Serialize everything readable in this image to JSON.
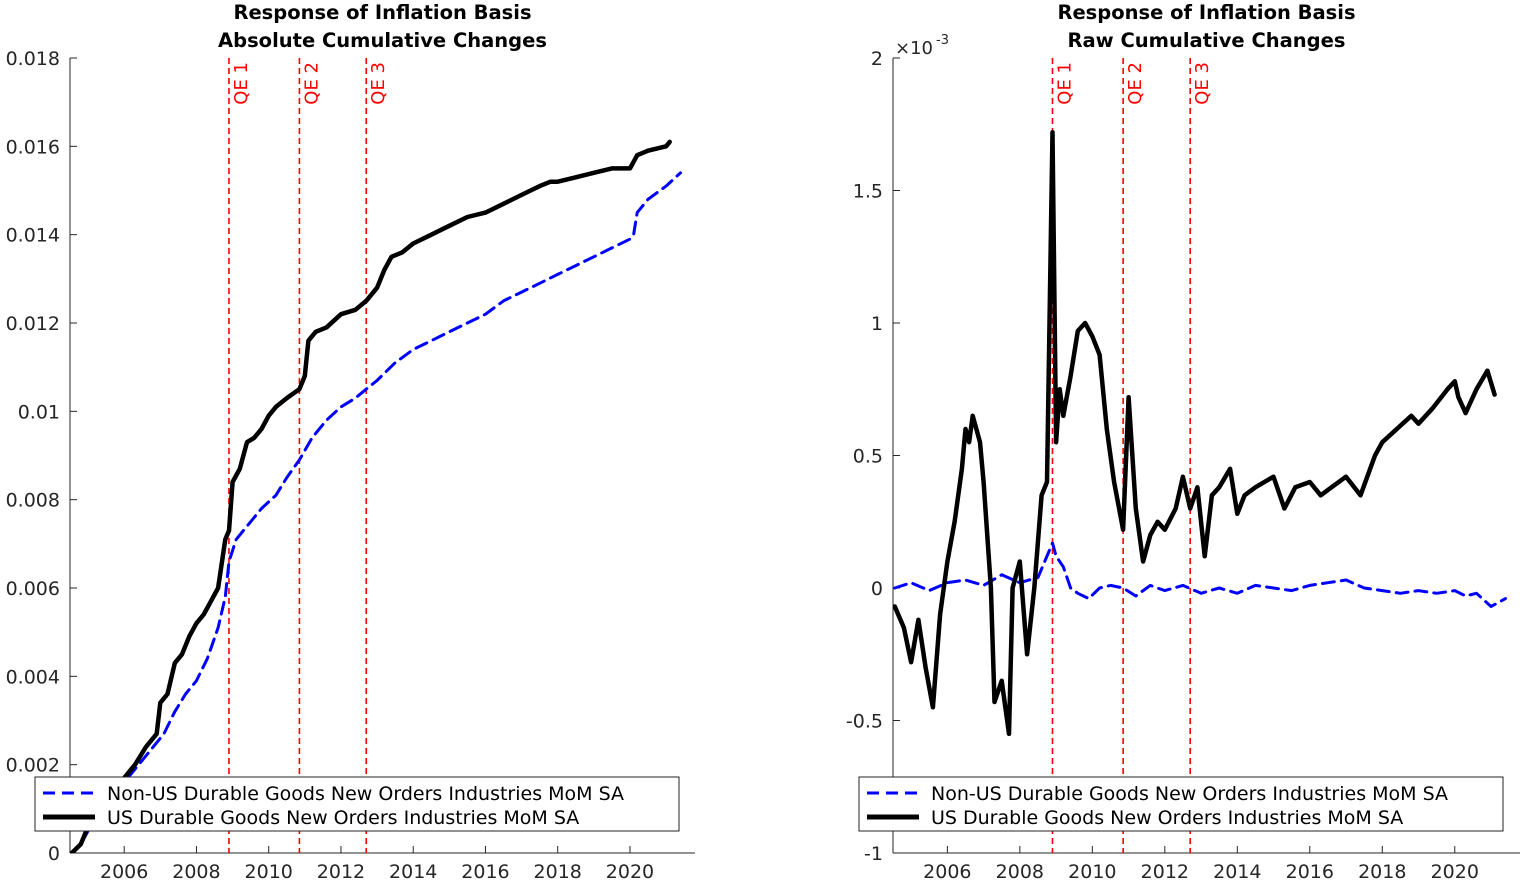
{
  "chart_data": [
    {
      "type": "line",
      "title": "Response of Inflation Basis",
      "subtitle": "Absolute Cumulative Changes",
      "xlabel": "",
      "ylabel": "",
      "xlim": [
        2004.5,
        2021.8
      ],
      "ylim": [
        0,
        0.018
      ],
      "x_ticks": [
        2006,
        2008,
        2010,
        2012,
        2014,
        2016,
        2018,
        2020
      ],
      "x_tick_labels": [
        "2006",
        "2008",
        "2010",
        "2012",
        "2014",
        "2016",
        "2018",
        "2020"
      ],
      "y_ticks": [
        0,
        0.002,
        0.004,
        0.006,
        0.008,
        0.01,
        0.012,
        0.014,
        0.016,
        0.018
      ],
      "y_tick_labels": [
        "0",
        "0.002",
        "0.004",
        "0.006",
        "0.008",
        "0.01",
        "0.012",
        "0.014",
        "0.016",
        "0.018"
      ],
      "y_exponent_label": "",
      "grid": false,
      "legend_placement": "bottom-left",
      "events": [
        {
          "label": "QE 1",
          "x": 2008.9,
          "color": "#ff0000"
        },
        {
          "label": "QE 2",
          "x": 2010.85,
          "color": "#ff0000"
        },
        {
          "label": "QE 3",
          "x": 2012.7,
          "color": "#ff0000"
        }
      ],
      "series": [
        {
          "name": "Non-US Durable Goods New Orders Industries MoM SA",
          "color": "#0000ff",
          "dash": "dashed",
          "x": [
            2004.55,
            2004.8,
            2005.0,
            2005.3,
            2005.6,
            2006.0,
            2006.2,
            2006.5,
            2006.8,
            2007.1,
            2007.4,
            2007.7,
            2008.0,
            2008.3,
            2008.6,
            2008.8,
            2008.9,
            2009.1,
            2009.4,
            2009.8,
            2010.2,
            2010.5,
            2010.85,
            2011.2,
            2011.6,
            2012.0,
            2012.4,
            2012.7,
            2013.0,
            2013.5,
            2014.0,
            2014.5,
            2015.0,
            2015.5,
            2016.0,
            2016.5,
            2017.0,
            2017.5,
            2018.0,
            2018.5,
            2019.0,
            2019.5,
            2020.0,
            2020.1,
            2020.2,
            2020.5,
            2021.0,
            2021.4
          ],
          "values": [
            0,
            0.0002,
            0.0005,
            0.0009,
            0.0012,
            0.0016,
            0.0018,
            0.0021,
            0.0024,
            0.0027,
            0.0032,
            0.0036,
            0.0039,
            0.0044,
            0.0051,
            0.0058,
            0.0066,
            0.0071,
            0.0074,
            0.0078,
            0.0081,
            0.0085,
            0.0089,
            0.0094,
            0.0098,
            0.0101,
            0.0103,
            0.0105,
            0.0107,
            0.0111,
            0.0114,
            0.0116,
            0.0118,
            0.012,
            0.0122,
            0.0125,
            0.0127,
            0.0129,
            0.0131,
            0.0133,
            0.0135,
            0.0137,
            0.0139,
            0.014,
            0.0145,
            0.0148,
            0.0151,
            0.0154
          ]
        },
        {
          "name": "US Durable Goods New Orders Industries MoM SA",
          "color": "#000000",
          "dash": "solid",
          "x": [
            2004.55,
            2004.8,
            2005.0,
            2005.3,
            2005.6,
            2006.0,
            2006.3,
            2006.6,
            2006.9,
            2007.0,
            2007.2,
            2007.4,
            2007.6,
            2007.8,
            2008.0,
            2008.2,
            2008.4,
            2008.6,
            2008.8,
            2008.9,
            2009.0,
            2009.2,
            2009.4,
            2009.6,
            2009.8,
            2010.0,
            2010.2,
            2010.5,
            2010.85,
            2011.0,
            2011.1,
            2011.3,
            2011.6,
            2012.0,
            2012.4,
            2012.7,
            2013.0,
            2013.2,
            2013.4,
            2013.7,
            2014.0,
            2014.5,
            2015.0,
            2015.5,
            2016.0,
            2016.5,
            2017.0,
            2017.5,
            2017.8,
            2018.0,
            2018.5,
            2019.0,
            2019.5,
            2020.0,
            2020.2,
            2020.5,
            2021.0,
            2021.1
          ],
          "values": [
            0,
            0.0002,
            0.0006,
            0.001,
            0.0013,
            0.0017,
            0.002,
            0.0024,
            0.0027,
            0.0034,
            0.0036,
            0.0043,
            0.0045,
            0.0049,
            0.0052,
            0.0054,
            0.0057,
            0.006,
            0.0071,
            0.0073,
            0.0084,
            0.0087,
            0.0093,
            0.0094,
            0.0096,
            0.0099,
            0.0101,
            0.0103,
            0.0105,
            0.0108,
            0.0116,
            0.0118,
            0.0119,
            0.0122,
            0.0123,
            0.0125,
            0.0128,
            0.0132,
            0.0135,
            0.0136,
            0.0138,
            0.014,
            0.0142,
            0.0144,
            0.0145,
            0.0147,
            0.0149,
            0.0151,
            0.0152,
            0.0152,
            0.0153,
            0.0154,
            0.0155,
            0.0155,
            0.0158,
            0.0159,
            0.016,
            0.0161
          ]
        }
      ]
    },
    {
      "type": "line",
      "title": "Response of Inflation Basis",
      "subtitle": "Raw Cumulative Changes",
      "xlabel": "",
      "ylabel": "",
      "xlim": [
        2004.5,
        2021.8
      ],
      "ylim": [
        -1,
        2
      ],
      "x_ticks": [
        2006,
        2008,
        2010,
        2012,
        2014,
        2016,
        2018,
        2020
      ],
      "x_tick_labels": [
        "2006",
        "2008",
        "2010",
        "2012",
        "2014",
        "2016",
        "2018",
        "2020"
      ],
      "y_ticks": [
        -1,
        -0.5,
        0,
        0.5,
        1,
        1.5,
        2
      ],
      "y_tick_labels": [
        "-1",
        "-0.5",
        "0",
        "0.5",
        "1",
        "1.5",
        "2"
      ],
      "y_exponent_label": "×10",
      "y_exponent_power": "-3",
      "grid": false,
      "legend_placement": "bottom",
      "events": [
        {
          "label": "QE 1",
          "x": 2008.9,
          "color": "#ff0000"
        },
        {
          "label": "QE 2",
          "x": 2010.85,
          "color": "#ff0000"
        },
        {
          "label": "QE 3",
          "x": 2012.7,
          "color": "#ff0000"
        }
      ],
      "series": [
        {
          "name": "Non-US Durable Goods New Orders Industries MoM SA",
          "color": "#0000ff",
          "dash": "dashed",
          "x": [
            2004.55,
            2005.0,
            2005.5,
            2006.0,
            2006.5,
            2007.0,
            2007.5,
            2008.0,
            2008.5,
            2008.9,
            2009.0,
            2009.2,
            2009.4,
            2009.6,
            2009.9,
            2010.2,
            2010.5,
            2010.85,
            2011.2,
            2011.6,
            2012.0,
            2012.5,
            2013.0,
            2013.5,
            2014.0,
            2014.5,
            2015.0,
            2015.5,
            2016.0,
            2016.5,
            2017.0,
            2017.5,
            2018.0,
            2018.5,
            2019.0,
            2019.5,
            2020.0,
            2020.3,
            2020.6,
            2021.0,
            2021.4
          ],
          "values": [
            0.0,
            0.02,
            -0.01,
            0.02,
            0.03,
            0.01,
            0.05,
            0.02,
            0.04,
            0.17,
            0.12,
            0.08,
            0.0,
            -0.02,
            -0.04,
            0.0,
            0.01,
            0.0,
            -0.03,
            0.01,
            -0.01,
            0.01,
            -0.02,
            0.0,
            -0.02,
            0.01,
            0.0,
            -0.01,
            0.01,
            0.02,
            0.03,
            0.0,
            -0.01,
            -0.02,
            -0.01,
            -0.02,
            -0.01,
            -0.03,
            -0.02,
            -0.07,
            -0.04
          ]
        },
        {
          "name": "US Durable Goods New Orders Industries MoM SA",
          "color": "#000000",
          "dash": "solid",
          "x": [
            2004.55,
            2004.8,
            2005.0,
            2005.2,
            2005.4,
            2005.6,
            2005.8,
            2006.0,
            2006.2,
            2006.4,
            2006.5,
            2006.6,
            2006.7,
            2006.9,
            2007.0,
            2007.2,
            2007.3,
            2007.5,
            2007.7,
            2007.8,
            2008.0,
            2008.2,
            2008.4,
            2008.6,
            2008.75,
            2008.9,
            2009.0,
            2009.1,
            2009.2,
            2009.4,
            2009.6,
            2009.8,
            2010.0,
            2010.2,
            2010.4,
            2010.6,
            2010.85,
            2011.0,
            2011.2,
            2011.4,
            2011.6,
            2011.8,
            2012.0,
            2012.3,
            2012.5,
            2012.7,
            2012.9,
            2013.1,
            2013.3,
            2013.5,
            2013.8,
            2014.0,
            2014.2,
            2014.5,
            2015.0,
            2015.3,
            2015.6,
            2016.0,
            2016.3,
            2016.6,
            2017.0,
            2017.4,
            2017.8,
            2018.0,
            2018.4,
            2018.8,
            2019.0,
            2019.4,
            2019.8,
            2020.0,
            2020.1,
            2020.3,
            2020.6,
            2020.9,
            2021.1
          ],
          "values": [
            -0.07,
            -0.15,
            -0.28,
            -0.12,
            -0.3,
            -0.45,
            -0.1,
            0.1,
            0.25,
            0.45,
            0.6,
            0.55,
            0.65,
            0.55,
            0.4,
            0.0,
            -0.43,
            -0.35,
            -0.55,
            0.0,
            0.1,
            -0.25,
            0.0,
            0.35,
            0.4,
            1.72,
            0.55,
            0.75,
            0.65,
            0.8,
            0.97,
            1.0,
            0.95,
            0.88,
            0.6,
            0.4,
            0.22,
            0.72,
            0.3,
            0.1,
            0.2,
            0.25,
            0.22,
            0.3,
            0.42,
            0.3,
            0.38,
            0.12,
            0.35,
            0.38,
            0.45,
            0.28,
            0.35,
            0.38,
            0.42,
            0.3,
            0.38,
            0.4,
            0.35,
            0.38,
            0.42,
            0.35,
            0.5,
            0.55,
            0.6,
            0.65,
            0.62,
            0.68,
            0.75,
            0.78,
            0.72,
            0.66,
            0.75,
            0.82,
            0.73
          ]
        }
      ]
    }
  ]
}
